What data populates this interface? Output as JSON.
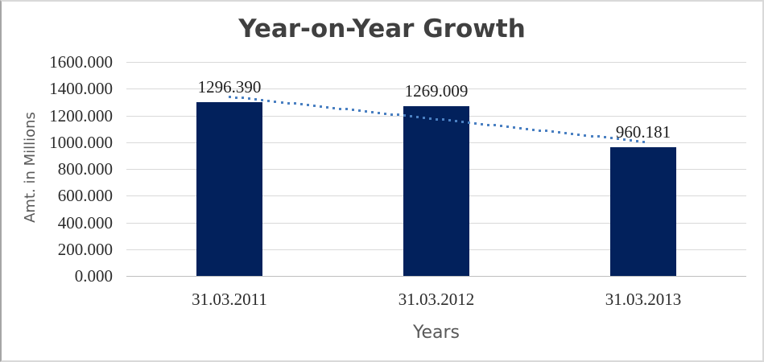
{
  "chart_data": {
    "type": "bar",
    "title": "Year-on-Year Growth",
    "xlabel": "Years",
    "ylabel": "Amt. in Millions",
    "categories": [
      "31.03.2011",
      "31.03.2012",
      "31.03.2013"
    ],
    "values": [
      1296.39,
      1269.009,
      960.181
    ],
    "data_labels": [
      "1296.390",
      "1269.009",
      "960.181"
    ],
    "ylim": [
      0,
      1600
    ],
    "ytick_step": 200,
    "yticks": [
      {
        "value": 0,
        "label": "0.000"
      },
      {
        "value": 200,
        "label": "200.000"
      },
      {
        "value": 400,
        "label": "400.000"
      },
      {
        "value": 600,
        "label": "600.000"
      },
      {
        "value": 800,
        "label": "800.000"
      },
      {
        "value": 1000,
        "label": "1000.000"
      },
      {
        "value": 1200,
        "label": "1200.000"
      },
      {
        "value": 1400,
        "label": "1400.000"
      },
      {
        "value": 1600,
        "label": "1600.000"
      }
    ],
    "grid": "horizontal",
    "legend": "none",
    "trendline": {
      "type": "linear",
      "style": "dotted"
    },
    "colors": {
      "bar": "#02215c",
      "trendline": "#4a80c2",
      "gridline": "#d9d9d9",
      "axis_line": "#bfbfbf",
      "title": "#404040",
      "axis_title": "#595959",
      "tick_label": "#2b2b2b",
      "data_label": "#1f1f1f"
    }
  }
}
